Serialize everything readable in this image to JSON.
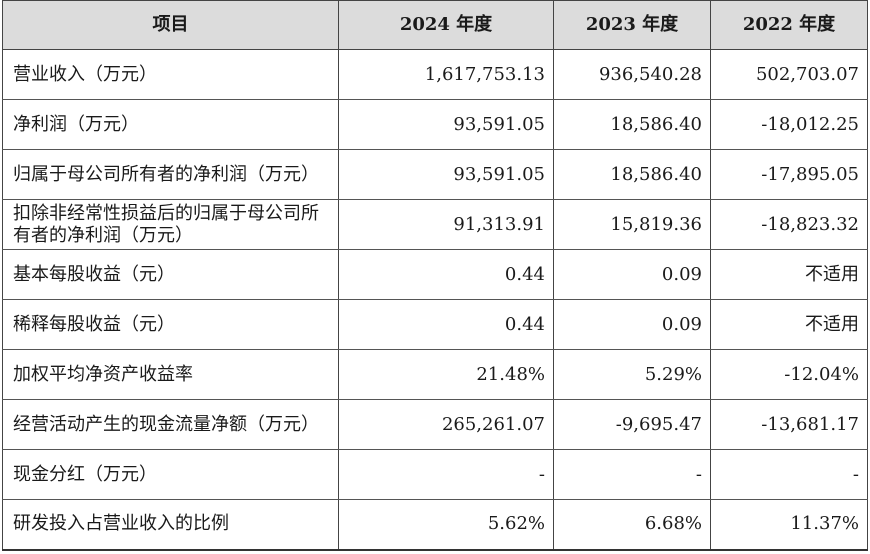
{
  "table": {
    "headers": [
      "项目",
      "2024 年度",
      "2023 年度",
      "2022 年度"
    ],
    "rows": [
      {
        "label": "营业收入（万元）",
        "values": [
          "1,617,753.13",
          "936,540.28",
          "502,703.07"
        ]
      },
      {
        "label": "净利润（万元）",
        "values": [
          "93,591.05",
          "18,586.40",
          "-18,012.25"
        ]
      },
      {
        "label": "归属于母公司所有者的净利润（万元）",
        "values": [
          "93,591.05",
          "18,586.40",
          "-17,895.05"
        ]
      },
      {
        "label": "扣除非经常性损益后的归属于母公司所有者的净利润（万元）",
        "values": [
          "91,313.91",
          "15,819.36",
          "-18,823.32"
        ]
      },
      {
        "label": "基本每股收益（元）",
        "values": [
          "0.44",
          "0.09",
          "不适用"
        ]
      },
      {
        "label": "稀释每股收益（元）",
        "values": [
          "0.44",
          "0.09",
          "不适用"
        ]
      },
      {
        "label": "加权平均净资产收益率",
        "values": [
          "21.48%",
          "5.29%",
          "-12.04%"
        ]
      },
      {
        "label": "经营活动产生的现金流量净额（万元）",
        "values": [
          "265,261.07",
          "-9,695.47",
          "-13,681.17"
        ]
      },
      {
        "label": "现金分红（万元）",
        "values": [
          "-",
          "-",
          "-"
        ]
      },
      {
        "label": "研发投入占营业收入的比例",
        "values": [
          "5.62%",
          "6.68%",
          "11.37%"
        ]
      }
    ]
  }
}
